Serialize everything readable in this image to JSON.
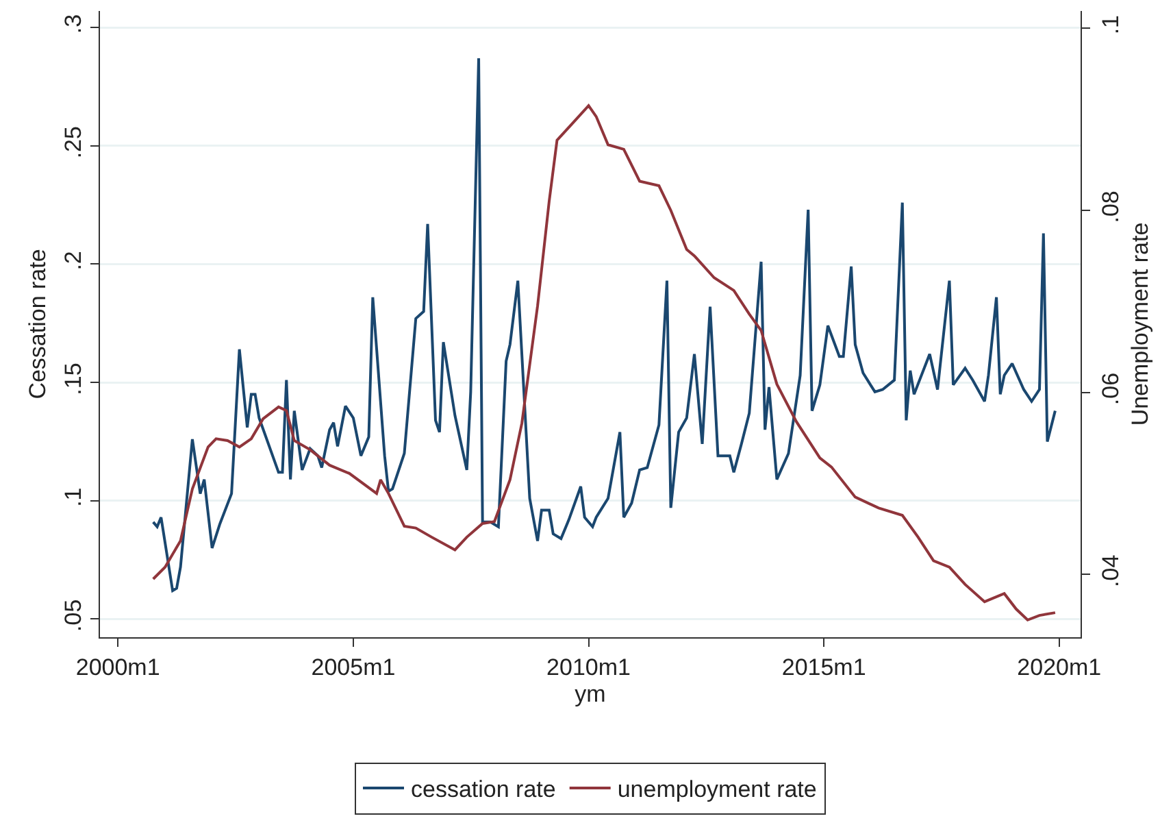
{
  "chart_data": {
    "type": "line",
    "xlabel": "ym",
    "ylabel": "Cessation rate",
    "y2label": "Unemployment rate",
    "xlim": [
      "1999-08-15",
      "2020-06-15"
    ],
    "xticks": [
      {
        "value": "2000-01",
        "label": "2000m1"
      },
      {
        "value": "2005-01",
        "label": "2005m1"
      },
      {
        "value": "2010-01",
        "label": "2010m1"
      },
      {
        "value": "2015-01",
        "label": "2015m1"
      },
      {
        "value": "2020-01",
        "label": "2020m1"
      }
    ],
    "ylim": [
      0.0423,
      0.307
    ],
    "yticks": [
      {
        "value": 0.05,
        "label": ".05"
      },
      {
        "value": 0.1,
        "label": ".1"
      },
      {
        "value": 0.15,
        "label": ".15"
      },
      {
        "value": 0.2,
        "label": ".2"
      },
      {
        "value": 0.25,
        "label": ".25"
      },
      {
        "value": 0.3,
        "label": ".3"
      }
    ],
    "y2lim": [
      0.0331,
      0.1019
    ],
    "y2ticks": [
      {
        "value": 0.04,
        "label": ".04"
      },
      {
        "value": 0.06,
        "label": ".06"
      },
      {
        "value": 0.08,
        "label": ".08"
      },
      {
        "value": 0.1,
        "label": ".1"
      }
    ],
    "grid": "y",
    "legend": "bottom",
    "line_style": "solid",
    "series": [
      {
        "name": "cessation rate",
        "color": "#1a476f",
        "x": [
          "2000-10",
          "2000-11",
          "2000-12",
          "2001-03",
          "2001-04",
          "2001-05",
          "2001-08",
          "2001-10",
          "2001-11",
          "2002-01",
          "2002-03",
          "2002-06",
          "2002-08",
          "2002-10",
          "2002-11",
          "2002-12",
          "2003-01",
          "2003-06",
          "2003-07",
          "2003-08",
          "2003-09",
          "2003-10",
          "2003-12",
          "2004-02",
          "2004-04",
          "2004-05",
          "2004-07",
          "2004-08",
          "2004-09",
          "2004-11",
          "2005-01",
          "2005-03",
          "2005-05",
          "2005-06",
          "2005-09",
          "2005-10",
          "2005-11",
          "2006-02",
          "2006-05",
          "2006-07",
          "2006-08",
          "2006-10",
          "2006-11",
          "2006-12",
          "2007-03",
          "2007-06",
          "2007-07",
          "2007-09",
          "2007-10",
          "2007-12",
          "2008-02",
          "2008-04",
          "2008-05",
          "2008-07",
          "2008-10",
          "2008-12",
          "2009-01",
          "2009-03",
          "2009-04",
          "2009-06",
          "2009-08",
          "2009-11",
          "2009-12",
          "2010-02",
          "2010-03",
          "2010-06",
          "2010-09",
          "2010-10",
          "2010-12",
          "2011-02",
          "2011-04",
          "2011-07",
          "2011-09",
          "2011-10",
          "2011-12",
          "2012-02",
          "2012-04",
          "2012-06",
          "2012-08",
          "2012-10",
          "2013-01",
          "2013-02",
          "2013-04",
          "2013-06",
          "2013-09",
          "2013-10",
          "2013-11",
          "2014-01",
          "2014-04",
          "2014-07",
          "2014-09",
          "2014-10",
          "2014-12",
          "2015-02",
          "2015-05",
          "2015-06",
          "2015-08",
          "2015-09",
          "2015-11",
          "2016-02",
          "2016-04",
          "2016-07",
          "2016-09",
          "2016-10",
          "2016-11",
          "2016-12",
          "2017-04",
          "2017-06",
          "2017-09",
          "2017-10",
          "2018-01",
          "2018-03",
          "2018-06",
          "2018-07",
          "2018-09",
          "2018-10",
          "2018-11",
          "2019-01",
          "2019-04",
          "2019-06",
          "2019-08",
          "2019-09",
          "2019-10",
          "2019-12"
        ],
        "values": [
          0.091,
          0.089,
          0.093,
          0.062,
          0.063,
          0.072,
          0.126,
          0.103,
          0.109,
          0.08,
          0.09,
          0.103,
          0.164,
          0.131,
          0.145,
          0.145,
          0.135,
          0.112,
          0.112,
          0.151,
          0.109,
          0.138,
          0.113,
          0.122,
          0.119,
          0.114,
          0.13,
          0.133,
          0.123,
          0.14,
          0.135,
          0.119,
          0.127,
          0.186,
          0.119,
          0.104,
          0.105,
          0.12,
          0.177,
          0.18,
          0.217,
          0.134,
          0.129,
          0.167,
          0.136,
          0.113,
          0.146,
          0.287,
          0.091,
          0.091,
          0.089,
          0.159,
          0.166,
          0.193,
          0.101,
          0.083,
          0.096,
          0.096,
          0.086,
          0.084,
          0.092,
          0.106,
          0.093,
          0.089,
          0.093,
          0.101,
          0.129,
          0.093,
          0.099,
          0.113,
          0.114,
          0.132,
          0.193,
          0.097,
          0.129,
          0.135,
          0.162,
          0.124,
          0.182,
          0.119,
          0.119,
          0.112,
          0.124,
          0.137,
          0.201,
          0.13,
          0.148,
          0.109,
          0.12,
          0.153,
          0.223,
          0.138,
          0.149,
          0.174,
          0.161,
          0.161,
          0.199,
          0.166,
          0.154,
          0.146,
          0.147,
          0.151,
          0.226,
          0.134,
          0.155,
          0.145,
          0.162,
          0.147,
          0.193,
          0.149,
          0.156,
          0.151,
          0.142,
          0.153,
          0.186,
          0.145,
          0.153,
          0.158,
          0.147,
          0.142,
          0.147,
          0.213,
          0.125,
          0.138
        ]
      },
      {
        "name": "unemployment rate",
        "color": "#90353b",
        "axis": "y2",
        "x": [
          "2000-10",
          "2001-01",
          "2001-05",
          "2001-08",
          "2001-12",
          "2002-02",
          "2002-05",
          "2002-08",
          "2002-11",
          "2003-02",
          "2003-06",
          "2003-08",
          "2003-10",
          "2004-02",
          "2004-07",
          "2004-12",
          "2005-07",
          "2005-08",
          "2005-10",
          "2006-02",
          "2006-05",
          "2006-09",
          "2007-03",
          "2007-06",
          "2007-10",
          "2008-01",
          "2008-05",
          "2008-08",
          "2008-12",
          "2009-03",
          "2009-05",
          "2009-09",
          "2010-01",
          "2010-03",
          "2010-06",
          "2010-10",
          "2011-02",
          "2011-07",
          "2011-10",
          "2012-02",
          "2012-04",
          "2012-09",
          "2013-02",
          "2013-06",
          "2013-09",
          "2014-01",
          "2014-06",
          "2014-12",
          "2015-03",
          "2015-09",
          "2016-03",
          "2016-09",
          "2017-01",
          "2017-05",
          "2017-09",
          "2018-01",
          "2018-06",
          "2018-11",
          "2019-02",
          "2019-05",
          "2019-08",
          "2019-12"
        ],
        "values": [
          0.0395,
          0.0408,
          0.0437,
          0.0494,
          0.054,
          0.0549,
          0.0547,
          0.054,
          0.0549,
          0.0571,
          0.0584,
          0.058,
          0.0547,
          0.0537,
          0.052,
          0.0511,
          0.0489,
          0.0504,
          0.0489,
          0.0453,
          0.0451,
          0.0441,
          0.0427,
          0.0441,
          0.0456,
          0.0458,
          0.0504,
          0.0566,
          0.0695,
          0.081,
          0.0877,
          0.0896,
          0.0915,
          0.0903,
          0.0872,
          0.0867,
          0.0832,
          0.0827,
          0.08,
          0.0757,
          0.075,
          0.0726,
          0.0712,
          0.0686,
          0.0668,
          0.0609,
          0.0568,
          0.0528,
          0.0518,
          0.0485,
          0.0473,
          0.0465,
          0.0441,
          0.0415,
          0.0408,
          0.0389,
          0.037,
          0.0379,
          0.0362,
          0.035,
          0.0355,
          0.0358
        ]
      }
    ]
  }
}
